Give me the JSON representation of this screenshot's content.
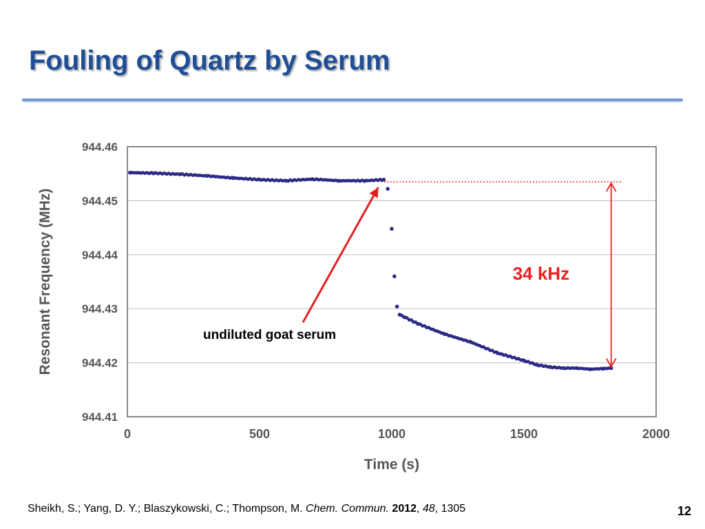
{
  "slide": {
    "title": "Fouling of Quartz by Serum",
    "page_number": "12"
  },
  "citation": {
    "authors": "Sheikh, S.; Yang, D. Y.; Blaszykowski, C.; Thompson, M.",
    "journal": "Chem. Commun.",
    "year": "2012",
    "volume": "48",
    "pages": "1305"
  },
  "chart_data": {
    "type": "scatter",
    "xlabel": "Time (s)",
    "ylabel": "Resonant Frequency (MHz)",
    "xlim": [
      0,
      2000
    ],
    "ylim": [
      944.41,
      944.46
    ],
    "xticks": [
      "0",
      "500",
      "1000",
      "1500",
      "2000"
    ],
    "yticks": [
      "944.41",
      "944.42",
      "944.43",
      "944.44",
      "944.45",
      "944.46"
    ],
    "grid": "horizontal",
    "colors": {
      "points": "#2b2b86",
      "annotation": "#e8201f",
      "arrow": "#e8201f"
    },
    "series": [
      {
        "x": [
          10,
          100,
          200,
          300,
          400,
          500,
          600,
          700,
          800,
          900,
          970,
          985,
          1000,
          1010,
          1020,
          1030,
          1050,
          1100,
          1200,
          1300,
          1400,
          1500,
          1550,
          1600,
          1650,
          1700,
          1750,
          1800,
          1830
        ],
        "y": [
          944.4552,
          944.4551,
          944.4549,
          944.4546,
          944.4542,
          944.4539,
          944.4537,
          944.454,
          944.4537,
          944.4537,
          944.4539,
          944.4522,
          944.4448,
          944.436,
          944.4304,
          944.4289,
          944.4284,
          944.4272,
          944.4253,
          944.4238,
          944.4218,
          944.4204,
          944.4196,
          944.4192,
          944.419,
          944.419,
          944.4188,
          944.4189,
          944.419
        ]
      }
    ],
    "annotations": [
      {
        "text": "undiluted goat serum",
        "points_to_x": 970,
        "points_to_y": 944.4535
      },
      {
        "text": "34 kHz",
        "from_y": 944.4535,
        "to_y": 944.419,
        "at_x": 1830
      }
    ],
    "reference_line": {
      "y": 944.4535,
      "x_start": 960,
      "x_end": 1870,
      "style": "dotted"
    }
  }
}
